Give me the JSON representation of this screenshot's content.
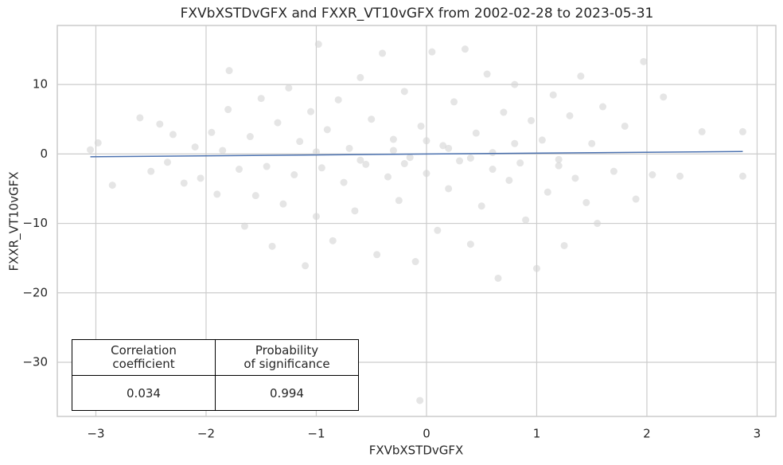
{
  "chart_data": {
    "type": "scatter",
    "title": "FXVbXSTDvGFX and FXXR_VT10vGFX from 2002-02-28 to 2023-05-31",
    "x_label": "FXVbXSTDvGFX",
    "y_label": "FXXR_VT10vGFX",
    "color": "#d3d3d3",
    "line_color": "#4c72b0",
    "grid": true,
    "xlim": [
      -3.35,
      3.17
    ],
    "ylim": [
      -37.8,
      18.5
    ],
    "xticks": [
      {
        "value": -3,
        "label": "−3"
      },
      {
        "value": -2,
        "label": "−2"
      },
      {
        "value": -1,
        "label": "−1"
      },
      0,
      1,
      2,
      3
    ],
    "yticks": [
      {
        "value": -30,
        "label": "−30"
      },
      {
        "value": -20,
        "label": "−20"
      },
      {
        "value": -10,
        "label": "−10"
      },
      0,
      10
    ],
    "x": [
      -3.05,
      -2.98,
      -2.85,
      -2.6,
      -2.5,
      -2.42,
      -2.35,
      -2.3,
      -2.2,
      -2.1,
      -2.05,
      -1.95,
      -1.9,
      -1.85,
      -1.8,
      -1.79,
      -1.7,
      -1.65,
      -1.6,
      -1.55,
      -1.5,
      -1.45,
      -1.4,
      -1.35,
      -1.3,
      -1.25,
      -1.2,
      -1.15,
      -1.1,
      -1.05,
      -1.0,
      -0.98,
      -0.95,
      -0.9,
      -0.85,
      -0.8,
      -0.75,
      -0.7,
      -0.65,
      -0.6,
      -0.55,
      -0.5,
      -0.45,
      -0.4,
      -0.35,
      -0.3,
      -0.25,
      -0.2,
      -0.15,
      -0.1,
      -0.06,
      -0.05,
      0,
      0.05,
      0.1,
      0.15,
      0.2,
      0.25,
      0.3,
      0.35,
      0.4,
      0.45,
      0.5,
      0.55,
      0.6,
      0.65,
      0.7,
      0.75,
      0.8,
      0.85,
      0.9,
      0.95,
      1.0,
      1.05,
      1.1,
      1.15,
      1.2,
      1.25,
      1.3,
      1.35,
      1.4,
      1.45,
      1.5,
      1.55,
      1.6,
      1.7,
      1.8,
      1.9,
      1.97,
      2.05,
      2.15,
      2.3,
      2.5,
      2.87,
      2.87,
      -0.3,
      0.2,
      0.4,
      -0.6,
      0.8,
      -1.0,
      1.2,
      0,
      -0.2,
      0.6
    ],
    "y": [
      0.6,
      1.6,
      -4.5,
      5.2,
      -2.5,
      4.3,
      -1.2,
      2.8,
      -4.2,
      1.0,
      -3.5,
      3.1,
      -5.8,
      0.5,
      6.4,
      12.0,
      -2.2,
      -10.4,
      2.5,
      -6.0,
      8.0,
      -1.8,
      -13.3,
      4.5,
      -7.2,
      9.5,
      -3.0,
      1.8,
      -16.1,
      6.1,
      -9.0,
      15.8,
      -2.0,
      3.5,
      -12.5,
      7.8,
      -4.1,
      0.8,
      -8.2,
      11.0,
      -1.5,
      5.0,
      -14.5,
      14.5,
      -3.3,
      2.1,
      -6.7,
      9.0,
      -0.5,
      -15.5,
      -35.5,
      4.0,
      -2.8,
      14.7,
      -11.0,
      1.2,
      -5.0,
      7.5,
      -1.0,
      15.1,
      -13.0,
      3.0,
      -7.5,
      11.5,
      0.2,
      -17.9,
      6.0,
      -3.8,
      10.0,
      -1.3,
      -9.5,
      4.8,
      -16.5,
      2.0,
      -5.5,
      8.5,
      -0.8,
      -13.2,
      5.5,
      -3.5,
      11.2,
      -7.0,
      1.5,
      -10.0,
      6.8,
      -2.5,
      4.0,
      -6.5,
      13.3,
      -3.0,
      8.2,
      -3.2,
      3.2,
      3.2,
      -3.2,
      0.5,
      0.8,
      -0.6,
      -0.9,
      1.5,
      0.3,
      -1.7,
      1.9,
      -1.4,
      -2.2
    ],
    "regression": {
      "x": [
        -3.05,
        2.87
      ],
      "y": [
        -0.4,
        0.35
      ]
    },
    "table": {
      "headers": [
        "Correlation\ncoefficient",
        "Probability\nof significance"
      ],
      "values": [
        0.034,
        0.994
      ]
    }
  }
}
